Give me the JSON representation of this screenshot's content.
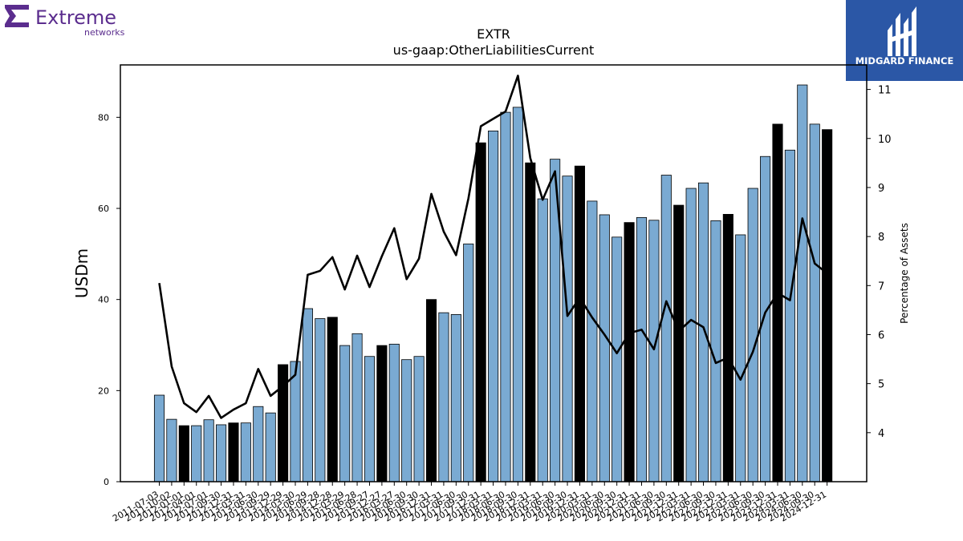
{
  "company_logo": {
    "name": "Extreme",
    "sub": "networks",
    "color": "#5b2d8e"
  },
  "brand": {
    "name": "MIDGARD FINANCE",
    "bg": "#2b57a6"
  },
  "chart_data": {
    "type": "bar",
    "title": "EXTR",
    "subtitle": "us-gaap:OtherLiabilitiesCurrent",
    "ylabel": "USDm",
    "y2label": "Percentage of Assets",
    "ylim": [
      0,
      91.5
    ],
    "y2lim": [
      3,
      11.5
    ],
    "yticks": [
      0,
      20,
      40,
      60,
      80
    ],
    "y2ticks": [
      4,
      5,
      6,
      7,
      8,
      9,
      10,
      11
    ],
    "colors": {
      "bar": "#7aaad2",
      "bar_highlight": "#000000",
      "line": "#000000"
    },
    "categories": [
      "2011-07-03",
      "2011-10-02",
      "2012-01-01",
      "2012-04-01",
      "2012-07-01",
      "2012-09-30",
      "2012-12-31",
      "2013-03-31",
      "2013-06-30",
      "2013-09-29",
      "2013-12-29",
      "2014-03-30",
      "2014-06-29",
      "2014-09-28",
      "2014-12-28",
      "2015-03-29",
      "2015-06-28",
      "2015-09-27",
      "2015-12-27",
      "2016-03-27",
      "2016-06-30",
      "2016-09-30",
      "2016-12-31",
      "2017-03-31",
      "2017-06-30",
      "2017-09-30",
      "2017-12-31",
      "2018-03-31",
      "2018-06-30",
      "2018-09-30",
      "2018-12-31",
      "2019-03-31",
      "2019-06-30",
      "2019-09-30",
      "2019-12-31",
      "2020-03-31",
      "2020-06-30",
      "2020-09-30",
      "2020-12-31",
      "2021-03-31",
      "2021-06-30",
      "2021-09-30",
      "2021-12-31",
      "2022-03-31",
      "2022-06-30",
      "2022-09-30",
      "2022-12-31",
      "2023-03-31",
      "2023-06-30",
      "2023-09-30",
      "2023-12-31",
      "2024-03-31",
      "2024-06-30",
      "2024-09-30",
      "2024-12-31"
    ],
    "series": [
      {
        "kind": "bar",
        "values": [
          19.0,
          13.7,
          12.3,
          12.3,
          13.6,
          12.5,
          12.9,
          12.9,
          16.5,
          15.1,
          25.7,
          26.4,
          38.0,
          35.8,
          36.1,
          29.9,
          32.5,
          27.5,
          29.9,
          30.2,
          26.8,
          27.5,
          40.0,
          37.1,
          36.7,
          52.2,
          74.4,
          77.0,
          81.1,
          82.2,
          70.0,
          62.1,
          70.8,
          67.1,
          69.3,
          61.6,
          58.6,
          53.7,
          56.9,
          58.0,
          57.4,
          67.3,
          60.7,
          64.4,
          65.6,
          57.3,
          58.7,
          54.2,
          64.4,
          71.4,
          78.5,
          72.8,
          87.1,
          78.5,
          77.3
        ],
        "highlight": [
          false,
          false,
          true,
          false,
          false,
          false,
          true,
          false,
          false,
          false,
          true,
          false,
          false,
          false,
          true,
          false,
          false,
          false,
          true,
          false,
          false,
          false,
          true,
          false,
          false,
          false,
          true,
          false,
          false,
          false,
          true,
          false,
          false,
          false,
          true,
          false,
          false,
          false,
          true,
          false,
          false,
          false,
          true,
          false,
          false,
          false,
          true,
          false,
          false,
          false,
          true,
          false,
          false,
          false,
          true
        ]
      },
      {
        "kind": "line",
        "axis": "right",
        "values": [
          7.05,
          5.35,
          4.6,
          4.42,
          4.75,
          4.3,
          4.47,
          4.6,
          5.3,
          4.75,
          4.95,
          5.18,
          7.22,
          7.3,
          7.58,
          6.92,
          7.61,
          6.97,
          7.6,
          8.17,
          7.13,
          7.55,
          8.87,
          8.1,
          7.62,
          8.78,
          10.25,
          10.4,
          10.55,
          11.28,
          9.6,
          8.75,
          9.33,
          6.38,
          6.75,
          6.35,
          6.0,
          5.62,
          6.03,
          6.1,
          5.7,
          6.68,
          6.07,
          6.3,
          6.15,
          5.42,
          5.53,
          5.08,
          5.65,
          6.45,
          6.85,
          6.7,
          8.37,
          7.45,
          7.25
        ]
      }
    ]
  }
}
